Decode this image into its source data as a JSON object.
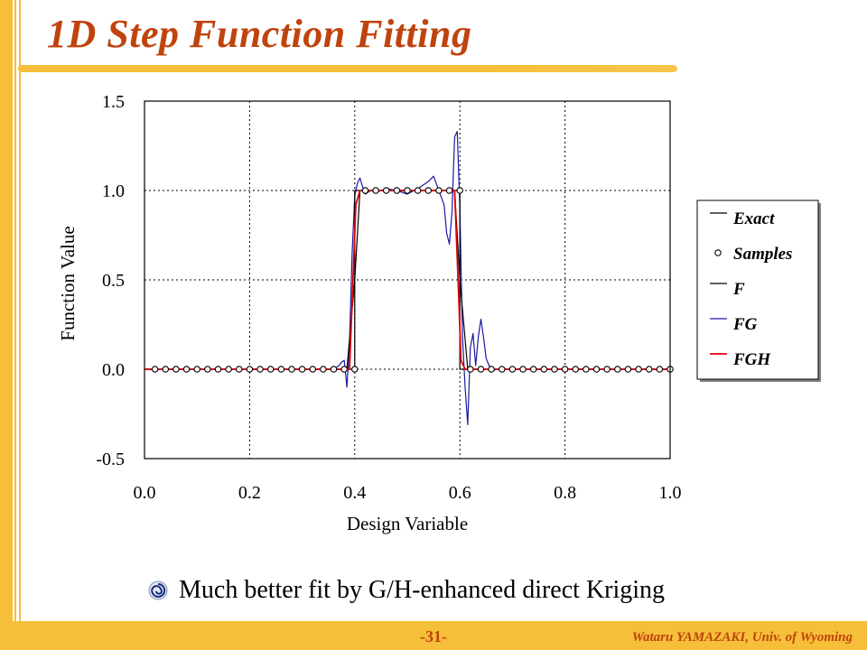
{
  "slide": {
    "title": "1D Step Function Fitting",
    "bullet": "Much better fit by G/H-enhanced direct Kriging",
    "page_number": "-31-",
    "author": "Wataru YAMAZAKI, Univ. of Wyoming",
    "accent_color": "#c0430d",
    "bar_color": "#f6bf39"
  },
  "chart_data": {
    "type": "line",
    "xlabel": "Design Variable",
    "ylabel": "Function Value",
    "xlim": [
      0.0,
      1.0
    ],
    "ylim": [
      -0.5,
      1.5
    ],
    "xticks": [
      "0.0",
      "0.2",
      "0.4",
      "0.6",
      "0.8",
      "1.0"
    ],
    "yticks": [
      "1.5",
      "1.0",
      "0.5",
      "0.0",
      "-0.5"
    ],
    "xtick_values": [
      0.0,
      0.2,
      0.4,
      0.6,
      0.8,
      1.0
    ],
    "ytick_values": [
      1.5,
      1.0,
      0.5,
      0.0,
      -0.5
    ],
    "grid": true,
    "legend_position": "outside-right",
    "legend": [
      "Exact",
      "Samples",
      "F",
      "FG",
      "FGH"
    ],
    "series": [
      {
        "name": "Exact",
        "color": "#000000",
        "x": [
          0.0,
          0.4,
          0.4,
          0.6,
          0.6,
          1.0
        ],
        "y": [
          0.0,
          0.0,
          1.0,
          1.0,
          0.0,
          0.0
        ]
      },
      {
        "name": "F",
        "color": "#000000",
        "x": [
          0.0,
          0.385,
          0.4,
          0.41,
          0.59,
          0.6,
          0.615,
          1.0
        ],
        "y": [
          0.0,
          0.0,
          0.5,
          1.0,
          1.0,
          0.5,
          0.0,
          0.0
        ]
      },
      {
        "name": "FG",
        "color": "#1a1aa0",
        "x": [
          0.0,
          0.36,
          0.37,
          0.375,
          0.38,
          0.385,
          0.39,
          0.395,
          0.4,
          0.405,
          0.41,
          0.415,
          0.42,
          0.43,
          0.44,
          0.46,
          0.48,
          0.5,
          0.52,
          0.54,
          0.55,
          0.56,
          0.57,
          0.575,
          0.58,
          0.585,
          0.59,
          0.595,
          0.6,
          0.605,
          0.61,
          0.615,
          0.62,
          0.625,
          0.63,
          0.635,
          0.64,
          0.645,
          0.65,
          0.66,
          0.67,
          1.0
        ],
        "y": [
          0.0,
          0.0,
          0.02,
          0.04,
          0.05,
          -0.1,
          0.15,
          0.65,
          0.97,
          1.04,
          1.07,
          1.02,
          0.98,
          1.0,
          0.99,
          1.01,
          1.0,
          0.98,
          1.01,
          1.05,
          1.08,
          1.0,
          0.92,
          0.76,
          0.7,
          0.88,
          1.3,
          1.33,
          0.9,
          0.18,
          -0.1,
          -0.31,
          0.12,
          0.2,
          0.02,
          0.18,
          0.28,
          0.18,
          0.06,
          -0.01,
          0.0,
          0.0
        ]
      },
      {
        "name": "FGH",
        "color": "#e0000a",
        "x": [
          0.0,
          0.39,
          0.398,
          0.402,
          0.41,
          0.59,
          0.598,
          0.602,
          0.61,
          1.0
        ],
        "y": [
          0.0,
          0.0,
          0.6,
          0.92,
          1.0,
          1.0,
          0.4,
          0.05,
          0.0,
          0.0
        ]
      },
      {
        "name": "Samples",
        "type": "scatter",
        "color": "#000000",
        "x": [
          0.02,
          0.04,
          0.06,
          0.08,
          0.1,
          0.12,
          0.14,
          0.16,
          0.18,
          0.2,
          0.22,
          0.24,
          0.26,
          0.28,
          0.3,
          0.32,
          0.34,
          0.36,
          0.38,
          0.4,
          0.42,
          0.44,
          0.46,
          0.48,
          0.5,
          0.52,
          0.54,
          0.56,
          0.58,
          0.6,
          0.62,
          0.64,
          0.66,
          0.68,
          0.7,
          0.72,
          0.74,
          0.76,
          0.78,
          0.8,
          0.82,
          0.84,
          0.86,
          0.88,
          0.9,
          0.92,
          0.94,
          0.96,
          0.98,
          1.0
        ],
        "y": [
          0,
          0,
          0,
          0,
          0,
          0,
          0,
          0,
          0,
          0,
          0,
          0,
          0,
          0,
          0,
          0,
          0,
          0,
          0,
          0,
          1,
          1,
          1,
          1,
          1,
          1,
          1,
          1,
          1,
          1,
          0,
          0,
          0,
          0,
          0,
          0,
          0,
          0,
          0,
          0,
          0,
          0,
          0,
          0,
          0,
          0,
          0,
          0,
          0,
          0
        ]
      }
    ]
  }
}
